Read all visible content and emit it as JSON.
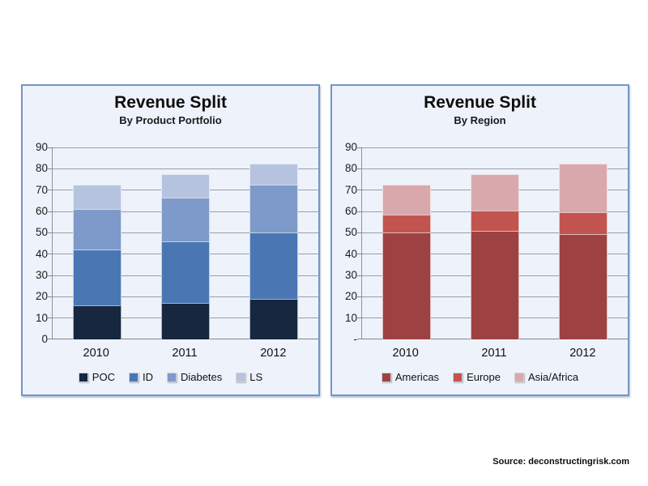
{
  "source_note": "Source: deconstructingrisk.com",
  "style": {
    "panel_background": "#eef2fa",
    "panel_border": "#7297c7",
    "gridline_color": "#9a9fa6",
    "axis_color": "#83878d",
    "page_background": "#ffffff"
  },
  "chart_data": [
    {
      "type": "bar",
      "subtype": "stacked",
      "title": "Revenue Split",
      "subtitle": "By Product Portfolio",
      "categories": [
        "2010",
        "2011",
        "2012"
      ],
      "series": [
        {
          "name": "POC",
          "color": "#16273f",
          "values": [
            16,
            17,
            19
          ]
        },
        {
          "name": "ID",
          "color": "#4a77b4",
          "values": [
            26,
            29,
            31
          ]
        },
        {
          "name": "Diabetes",
          "color": "#7e9aca",
          "values": [
            19,
            20.5,
            22.5
          ]
        },
        {
          "name": "LS",
          "color": "#b6c3de",
          "values": [
            11.5,
            11,
            10
          ]
        }
      ],
      "stack_totals": [
        72.5,
        77.5,
        82.5
      ],
      "ylim": [
        0,
        90
      ],
      "y_ticks": [
        {
          "label": "90",
          "value": 90
        },
        {
          "label": "80",
          "value": 80
        },
        {
          "label": "70",
          "value": 70
        },
        {
          "label": "60",
          "value": 60
        },
        {
          "label": "50",
          "value": 50
        },
        {
          "label": "40",
          "value": 40
        },
        {
          "label": "30",
          "value": 30
        },
        {
          "label": "20",
          "value": 20
        },
        {
          "label": "10",
          "value": 10
        },
        {
          "label": "0",
          "value": 0
        }
      ],
      "gridlines": true,
      "legend_position": "bottom"
    },
    {
      "type": "bar",
      "subtype": "stacked",
      "title": "Revenue Split",
      "subtitle": "By Region",
      "categories": [
        "2010",
        "2011",
        "2012"
      ],
      "series": [
        {
          "name": "Americas",
          "color": "#9e4142",
          "values": [
            50,
            51,
            49.5
          ]
        },
        {
          "name": "Europe",
          "color": "#c25450",
          "values": [
            8.5,
            9.5,
            10
          ]
        },
        {
          "name": "Asia/Africa",
          "color": "#d9a8ac",
          "values": [
            14,
            17,
            23
          ]
        }
      ],
      "stack_totals": [
        72.5,
        77.5,
        82.5
      ],
      "ylim": [
        0,
        90
      ],
      "y_ticks": [
        {
          "label": "90",
          "value": 90
        },
        {
          "label": "80",
          "value": 80
        },
        {
          "label": "70",
          "value": 70
        },
        {
          "label": "60",
          "value": 60
        },
        {
          "label": "50",
          "value": 50
        },
        {
          "label": "40",
          "value": 40
        },
        {
          "label": "30",
          "value": 30
        },
        {
          "label": "20",
          "value": 20
        },
        {
          "label": "10",
          "value": 10
        },
        {
          "label": "-",
          "value": 0
        }
      ],
      "gridlines": true,
      "legend_position": "bottom"
    }
  ]
}
